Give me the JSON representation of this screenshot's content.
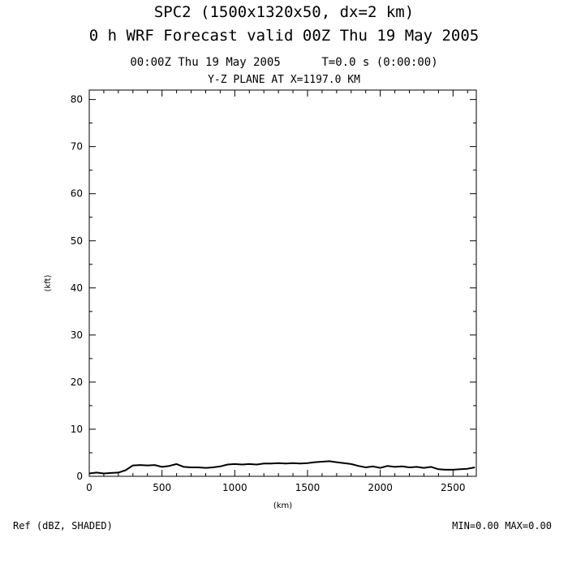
{
  "header": {
    "title_line1": "SPC2 (1500x1320x50, dx=2 km)",
    "title_line2": "0 h WRF Forecast valid 00Z Thu 19 May 2005",
    "time_line": "00:00Z Thu 19 May 2005      T=0.0 s (0:00:00)",
    "plane_line": "Y-Z PLANE AT X=1197.0 KM"
  },
  "footer": {
    "field": "Ref (dBZ, SHADED)",
    "range": "MIN=0.00 MAX=0.00"
  },
  "chart_data": {
    "type": "line",
    "title": "Y-Z PLANE AT X=1197.0 KM",
    "xlabel": "(km)",
    "ylabel": "(kft)",
    "xlim": [
      0,
      2660
    ],
    "ylim": [
      0,
      82
    ],
    "xticks": [
      0,
      500,
      1000,
      1500,
      2000,
      2500
    ],
    "yticks": [
      0,
      10,
      20,
      30,
      40,
      50,
      60,
      70,
      80
    ],
    "grid": false,
    "series": [
      {
        "name": "",
        "x": [
          0,
          50,
          100,
          150,
          200,
          250,
          300,
          350,
          400,
          450,
          500,
          550,
          600,
          650,
          700,
          750,
          800,
          850,
          900,
          950,
          1000,
          1050,
          1100,
          1150,
          1200,
          1250,
          1300,
          1350,
          1400,
          1450,
          1500,
          1550,
          1600,
          1650,
          1700,
          1750,
          1800,
          1850,
          1900,
          1950,
          2000,
          2050,
          2100,
          2150,
          2200,
          2250,
          2300,
          2350,
          2400,
          2450,
          2500,
          2550,
          2600,
          2650
        ],
        "y": [
          0.6,
          0.8,
          0.6,
          0.7,
          0.8,
          1.3,
          2.3,
          2.4,
          2.3,
          2.4,
          2.0,
          2.2,
          2.6,
          2.0,
          1.9,
          1.9,
          1.8,
          1.9,
          2.1,
          2.5,
          2.6,
          2.5,
          2.6,
          2.5,
          2.7,
          2.7,
          2.8,
          2.7,
          2.8,
          2.7,
          2.8,
          3.0,
          3.1,
          3.2,
          3.0,
          2.8,
          2.6,
          2.2,
          1.9,
          2.1,
          1.8,
          2.2,
          2.0,
          2.1,
          1.9,
          2.0,
          1.8,
          2.0,
          1.5,
          1.4,
          1.4,
          1.5,
          1.6,
          1.9
        ]
      }
    ]
  }
}
